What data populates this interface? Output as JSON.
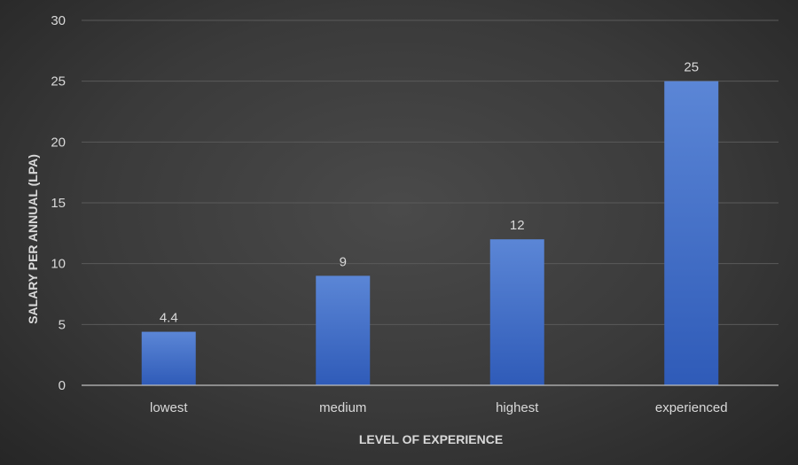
{
  "chart_data": {
    "type": "bar",
    "categories": [
      "lowest",
      "medium",
      "highest",
      "experienced"
    ],
    "values": [
      4.4,
      9,
      12,
      25
    ],
    "data_labels": [
      "4.4",
      "9",
      "12",
      "25"
    ],
    "title": "",
    "xlabel": "LEVEL OF EXPERIENCE",
    "ylabel": "SALARY PER ANNUAL (LPA)",
    "ylim": [
      0,
      30
    ],
    "yticks": [
      0,
      5,
      10,
      15,
      20,
      25,
      30
    ],
    "grid": true,
    "legend": "none",
    "colors": {
      "bar_top": "#5b86d6",
      "bar_bottom": "#2f5bb8",
      "grid": "#5a5a5a",
      "axis": "#bfbfbf",
      "text": "#d9d9d9"
    }
  }
}
